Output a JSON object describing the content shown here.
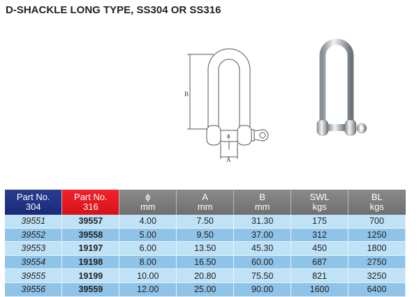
{
  "title": "D-SHACKLE LONG TYPE, SS304 OR SS316",
  "drawing": {
    "label_b": "B",
    "label_a": "A",
    "label_phi": "ϕ"
  },
  "table": {
    "headers": [
      [
        "Part No.",
        "304"
      ],
      [
        "Part No.",
        "316"
      ],
      [
        "ϕ",
        "mm"
      ],
      [
        "A",
        "mm"
      ],
      [
        "B",
        "mm"
      ],
      [
        "SWL",
        "kgs"
      ],
      [
        "BL",
        "kgs"
      ]
    ],
    "rows": [
      [
        "39551",
        "39557",
        "4.00",
        "7.50",
        "31.30",
        "175",
        "700"
      ],
      [
        "39552",
        "39558",
        "5.00",
        "9.50",
        "37.00",
        "312",
        "1250"
      ],
      [
        "39553",
        "19197",
        "6.00",
        "13.50",
        "45.30",
        "450",
        "1800"
      ],
      [
        "39554",
        "19198",
        "8.00",
        "16.50",
        "60.00",
        "687",
        "2750"
      ],
      [
        "39555",
        "19199",
        "10.00",
        "20.80",
        "75.50",
        "821",
        "3250"
      ],
      [
        "39556",
        "39559",
        "12.00",
        "25.00",
        "90.00",
        "1600",
        "6400"
      ]
    ]
  },
  "colors": {
    "part304": "#1a2a78",
    "part316": "#e01a22",
    "header": "#7a7a7a",
    "row_light": "#bfe2f7",
    "row_dark": "#8fc3e8"
  }
}
